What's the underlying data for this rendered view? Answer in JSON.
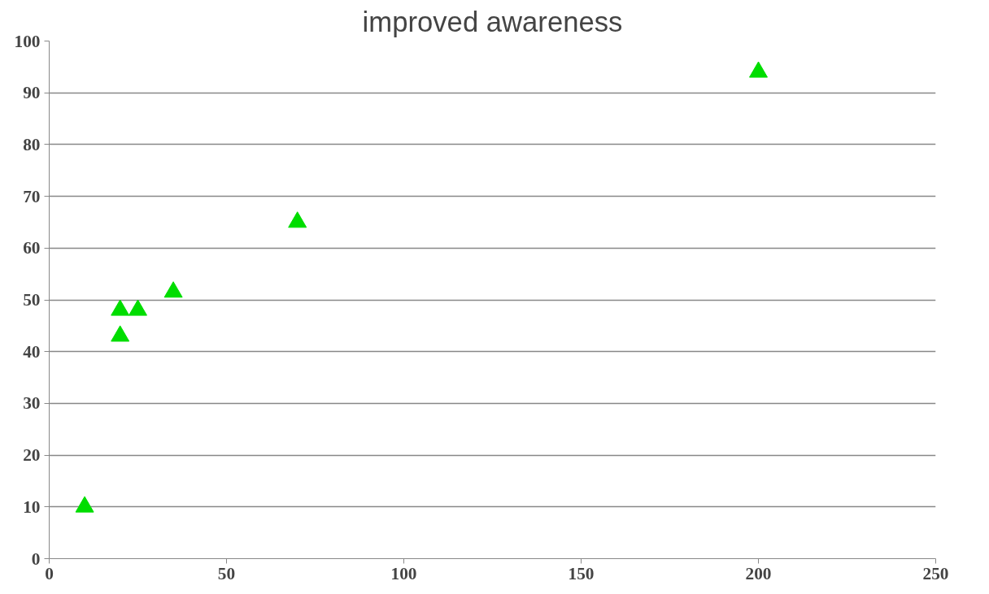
{
  "chart_data": {
    "type": "scatter",
    "title": "improved awareness",
    "x": [
      10,
      20,
      20,
      25,
      35,
      70,
      200
    ],
    "series": [
      {
        "color": "#00dd00",
        "values": [
          10,
          43,
          48,
          48,
          51.5,
          65,
          94
        ]
      }
    ],
    "xlim": [
      0,
      250
    ],
    "xticks": [
      0,
      50,
      100,
      150,
      200,
      250
    ],
    "ylim": [
      0,
      100
    ],
    "yticks": [
      0,
      10,
      20,
      30,
      40,
      50,
      60,
      70,
      80,
      90,
      100
    ],
    "grid": "y",
    "marker": "triangle"
  }
}
